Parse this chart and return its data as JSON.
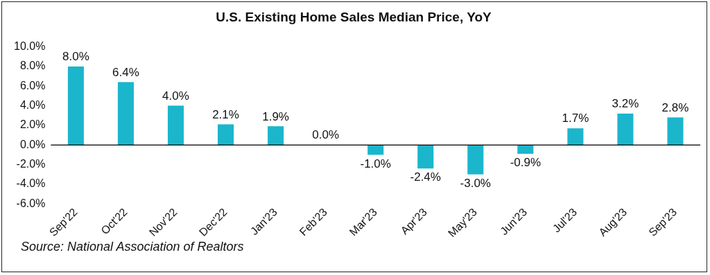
{
  "chart_data": {
    "type": "bar",
    "title": "U.S. Existing Home Sales Median Price, YoY",
    "categories": [
      "Sep'22",
      "Oct'22",
      "Nov'22",
      "Dec'22",
      "Jan'23",
      "Feb'23",
      "Mar'23",
      "Apr'23",
      "May'23",
      "Jun'23",
      "Jul'23",
      "Aug'23",
      "Sep'23"
    ],
    "values": [
      8.0,
      6.4,
      4.0,
      2.1,
      1.9,
      0.0,
      -1.0,
      -2.4,
      -3.0,
      -0.9,
      1.7,
      3.2,
      2.8
    ],
    "value_labels": [
      "8.0%",
      "6.4%",
      "4.0%",
      "2.1%",
      "1.9%",
      "0.0%",
      "-1.0%",
      "-2.4%",
      "-3.0%",
      "-0.9%",
      "1.7%",
      "3.2%",
      "2.8%"
    ],
    "color": "#1bb6cc",
    "ylim": [
      -6,
      10
    ],
    "yticks": [
      {
        "value": -6,
        "label": "-6.0%"
      },
      {
        "value": -4,
        "label": "-4.0%"
      },
      {
        "value": -2,
        "label": "-2.0%"
      },
      {
        "value": 0,
        "label": "0.0%"
      },
      {
        "value": 2,
        "label": "2.0%"
      },
      {
        "value": 4,
        "label": "4.0%"
      },
      {
        "value": 6,
        "label": "6.0%"
      },
      {
        "value": 8,
        "label": "8.0%"
      },
      {
        "value": 10,
        "label": "10.0%"
      }
    ],
    "grid": false,
    "legend": false,
    "ref_lines": [
      {
        "axis": "y",
        "value": 0,
        "color": "#000000"
      }
    ],
    "annotations": [
      "Source: National Association of Realtors"
    ]
  }
}
